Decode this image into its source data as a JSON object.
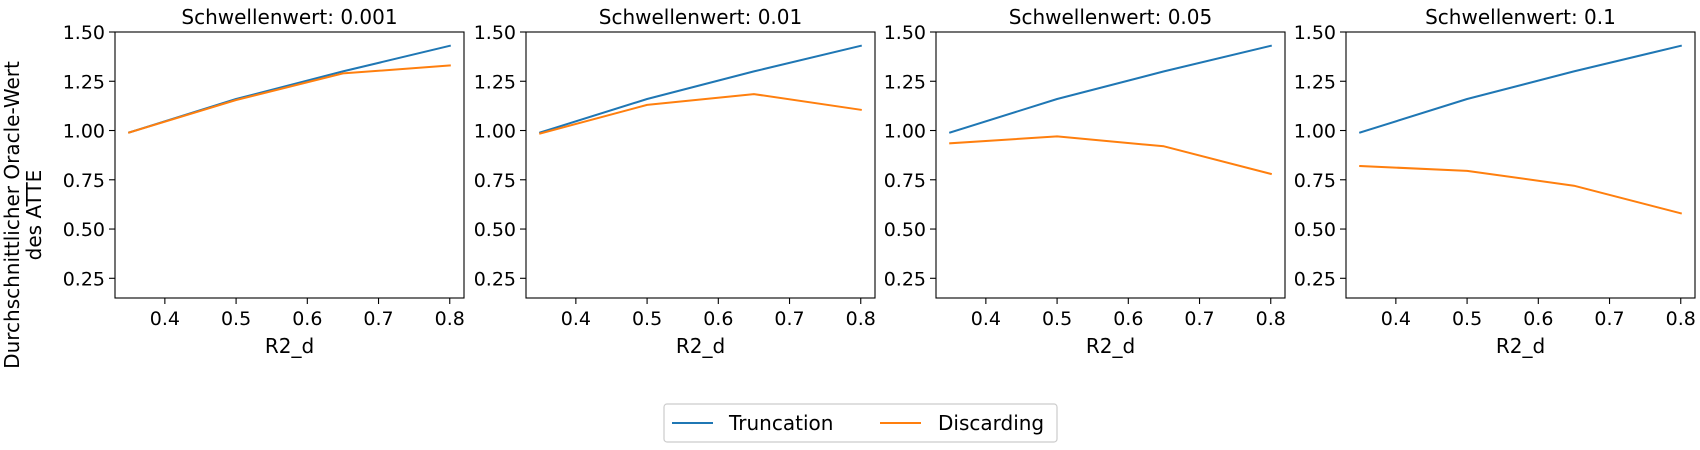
{
  "colors": {
    "truncation": "#1f77b4",
    "discarding": "#ff7f0e"
  },
  "legend": {
    "placement": "bottom-center",
    "entries": [
      "Truncation",
      "Discarding"
    ]
  },
  "chart_data": [
    {
      "type": "line",
      "title": "Schwellenwert: 0.001",
      "xlabel": "R2_d",
      "ylabel": "Durchschnittlicher Oracle-Wert des ATTE",
      "xlim": [
        0.33,
        0.82
      ],
      "ylim": [
        0.15,
        1.5
      ],
      "xticks": [
        "0.4",
        "0.5",
        "0.6",
        "0.7",
        "0.8"
      ],
      "yticks": [
        "0.25",
        "0.50",
        "0.75",
        "1.00",
        "1.25",
        "1.50"
      ],
      "x": [
        0.35,
        0.5,
        0.65,
        0.8
      ],
      "series": [
        {
          "name": "Truncation",
          "values": [
            0.99,
            1.16,
            1.3,
            1.43
          ]
        },
        {
          "name": "Discarding",
          "values": [
            0.99,
            1.155,
            1.29,
            1.33
          ]
        }
      ]
    },
    {
      "type": "line",
      "title": "Schwellenwert: 0.01",
      "xlabel": "R2_d",
      "ylabel": "",
      "xlim": [
        0.33,
        0.82
      ],
      "ylim": [
        0.15,
        1.5
      ],
      "xticks": [
        "0.4",
        "0.5",
        "0.6",
        "0.7",
        "0.8"
      ],
      "yticks": [
        "0.25",
        "0.50",
        "0.75",
        "1.00",
        "1.25",
        "1.50"
      ],
      "x": [
        0.35,
        0.5,
        0.65,
        0.8
      ],
      "series": [
        {
          "name": "Truncation",
          "values": [
            0.99,
            1.16,
            1.3,
            1.43
          ]
        },
        {
          "name": "Discarding",
          "values": [
            0.985,
            1.13,
            1.185,
            1.105
          ]
        }
      ]
    },
    {
      "type": "line",
      "title": "Schwellenwert: 0.05",
      "xlabel": "R2_d",
      "ylabel": "",
      "xlim": [
        0.33,
        0.82
      ],
      "ylim": [
        0.15,
        1.5
      ],
      "xticks": [
        "0.4",
        "0.5",
        "0.6",
        "0.7",
        "0.8"
      ],
      "yticks": [
        "0.25",
        "0.50",
        "0.75",
        "1.00",
        "1.25",
        "1.50"
      ],
      "x": [
        0.35,
        0.5,
        0.65,
        0.8
      ],
      "series": [
        {
          "name": "Truncation",
          "values": [
            0.99,
            1.16,
            1.3,
            1.43
          ]
        },
        {
          "name": "Discarding",
          "values": [
            0.935,
            0.97,
            0.92,
            0.78
          ]
        }
      ]
    },
    {
      "type": "line",
      "title": "Schwellenwert: 0.1",
      "xlabel": "R2_d",
      "ylabel": "",
      "xlim": [
        0.33,
        0.82
      ],
      "ylim": [
        0.15,
        1.5
      ],
      "xticks": [
        "0.4",
        "0.5",
        "0.6",
        "0.7",
        "0.8"
      ],
      "yticks": [
        "0.25",
        "0.50",
        "0.75",
        "1.00",
        "1.25",
        "1.50"
      ],
      "x": [
        0.35,
        0.5,
        0.65,
        0.8
      ],
      "series": [
        {
          "name": "Truncation",
          "values": [
            0.99,
            1.16,
            1.3,
            1.43
          ]
        },
        {
          "name": "Discarding",
          "values": [
            0.82,
            0.795,
            0.72,
            0.58
          ]
        }
      ]
    }
  ]
}
